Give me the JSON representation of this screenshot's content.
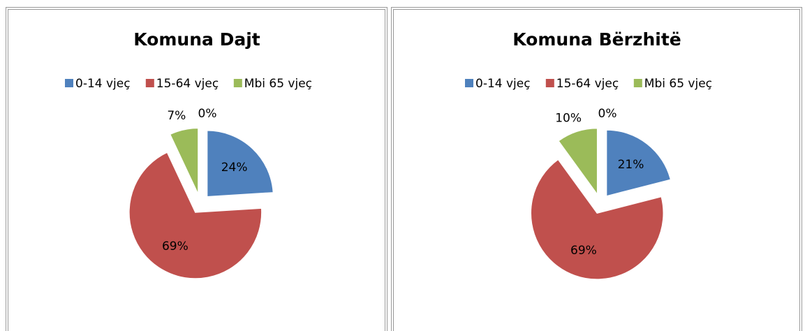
{
  "chart_data": [
    {
      "type": "pie",
      "title": "Komuna Dajt",
      "categories": [
        "0-14 vjeç",
        "15-64 vjeç",
        "Mbi 65 vjeç",
        null
      ],
      "values": [
        24,
        69,
        7,
        0
      ],
      "value_labels": [
        "24%",
        "69%",
        "7%",
        "0%"
      ],
      "colors": [
        "#4f81bd",
        "#c0504d",
        "#9bbb59",
        "#8064a2"
      ],
      "legend": "top",
      "exploded": true
    },
    {
      "type": "pie",
      "title": "Komuna Bërzhitë",
      "categories": [
        "0-14 vjeç",
        "15-64 vjeç",
        "Mbi 65 vjeç",
        null
      ],
      "values": [
        21,
        69,
        10,
        0
      ],
      "value_labels": [
        "21%",
        "69%",
        "10%",
        "0%"
      ],
      "colors": [
        "#4f81bd",
        "#c0504d",
        "#9bbb59",
        "#8064a2"
      ],
      "legend": "top",
      "exploded": true
    }
  ]
}
